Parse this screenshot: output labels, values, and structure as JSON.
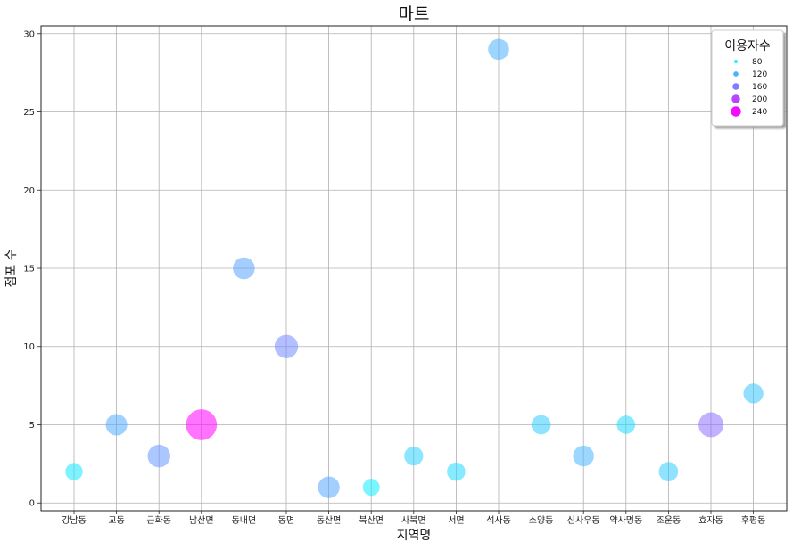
{
  "chart_data": {
    "type": "scatter",
    "title": "마트",
    "xlabel": "지역명",
    "ylabel": "점포 수",
    "ylim": [
      -0.5,
      30.5
    ],
    "yticks": [
      0,
      5,
      10,
      15,
      20,
      25,
      30
    ],
    "grid": true,
    "categories": [
      "강남동",
      "교동",
      "근화동",
      "남산면",
      "동내면",
      "동면",
      "동산면",
      "북산면",
      "사북면",
      "서면",
      "석사동",
      "소양동",
      "신사우동",
      "약사명동",
      "조운동",
      "효자동",
      "후평동"
    ],
    "series": [
      {
        "x": [
          "강남동",
          "교동",
          "근화동",
          "남산면",
          "동내면",
          "동면",
          "동산면",
          "북산면",
          "사북면",
          "서면",
          "석사동",
          "소양동",
          "신사우동",
          "약사명동",
          "조운동",
          "효자동",
          "후평동"
        ],
        "y": [
          2,
          5,
          3,
          5,
          15,
          10,
          1,
          1,
          3,
          2,
          29,
          5,
          3,
          5,
          2,
          5,
          7
        ],
        "size": [
          82,
          125,
          140,
          260,
          130,
          150,
          128,
          78,
          98,
          92,
          120,
          102,
          118,
          92,
          102,
          168,
          108
        ]
      }
    ],
    "size_legend": {
      "title": "이용자수",
      "values": [
        80,
        120,
        160,
        200,
        240
      ],
      "labels": [
        "80",
        "120",
        "160",
        "200",
        "240"
      ],
      "placement": "top-right"
    },
    "colormap": "cool",
    "color_range": [
      65,
      250
    ]
  }
}
